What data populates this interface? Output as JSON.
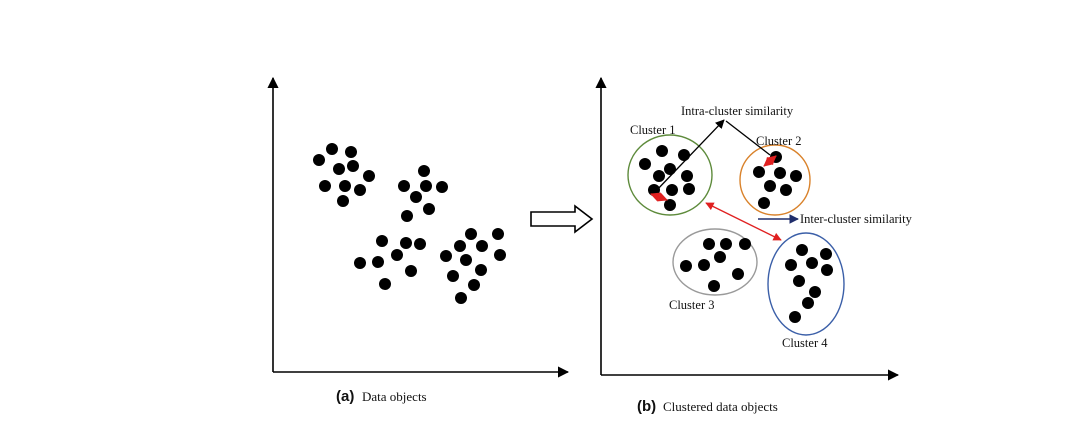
{
  "colors": {
    "point": "#000000",
    "axis": "#000000",
    "cluster1_outline": "#5e8b3c",
    "cluster2_outline": "#d9822b",
    "cluster3_outline": "#9a9a9a",
    "cluster4_outline": "#3b5fa8",
    "intra_marker": "#e02020",
    "inter_arrow": "#e02020",
    "inter_label_arrow": "#1f2d6b"
  },
  "panel_a": {
    "caption_letter": "(a)",
    "caption_text": "Data objects"
  },
  "panel_b": {
    "caption_letter": "(b)",
    "caption_text": "Clustered data objects",
    "intra_label": "Intra-cluster similarity",
    "inter_label": "Inter-cluster similarity",
    "clusters": [
      "Cluster 1",
      "Cluster 2",
      "Cluster 3",
      "Cluster 4"
    ]
  },
  "transition_arrow": "hollow-right-arrow-icon"
}
